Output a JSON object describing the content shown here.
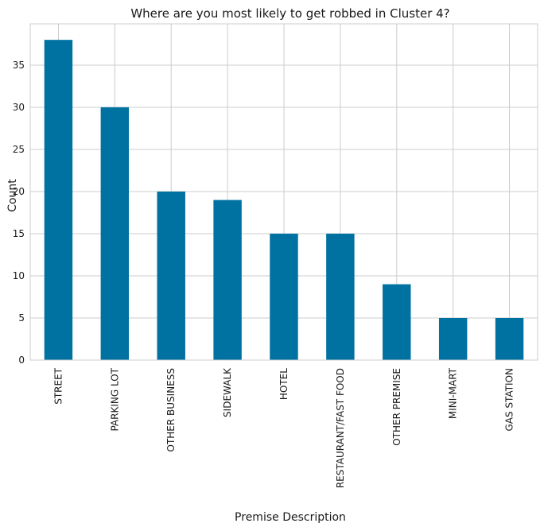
{
  "chart_data": {
    "type": "bar",
    "title": "Where are you most likely to get robbed in Cluster 4?",
    "xlabel": "Premise Description",
    "ylabel": "Count",
    "categories": [
      "STREET",
      "PARKING LOT",
      "OTHER BUSINESS",
      "SIDEWALK",
      "HOTEL",
      "RESTAURANT/FAST FOOD",
      "OTHER PREMISE",
      "MINI-MART",
      "GAS STATION"
    ],
    "values": [
      38,
      30,
      20,
      19,
      15,
      15,
      9,
      5,
      5
    ],
    "ylim": [
      0,
      39.9
    ],
    "yticks": [
      0,
      5,
      10,
      15,
      20,
      25,
      30,
      35
    ],
    "grid": true,
    "legend": "none",
    "bar_color": "#0072a2"
  }
}
